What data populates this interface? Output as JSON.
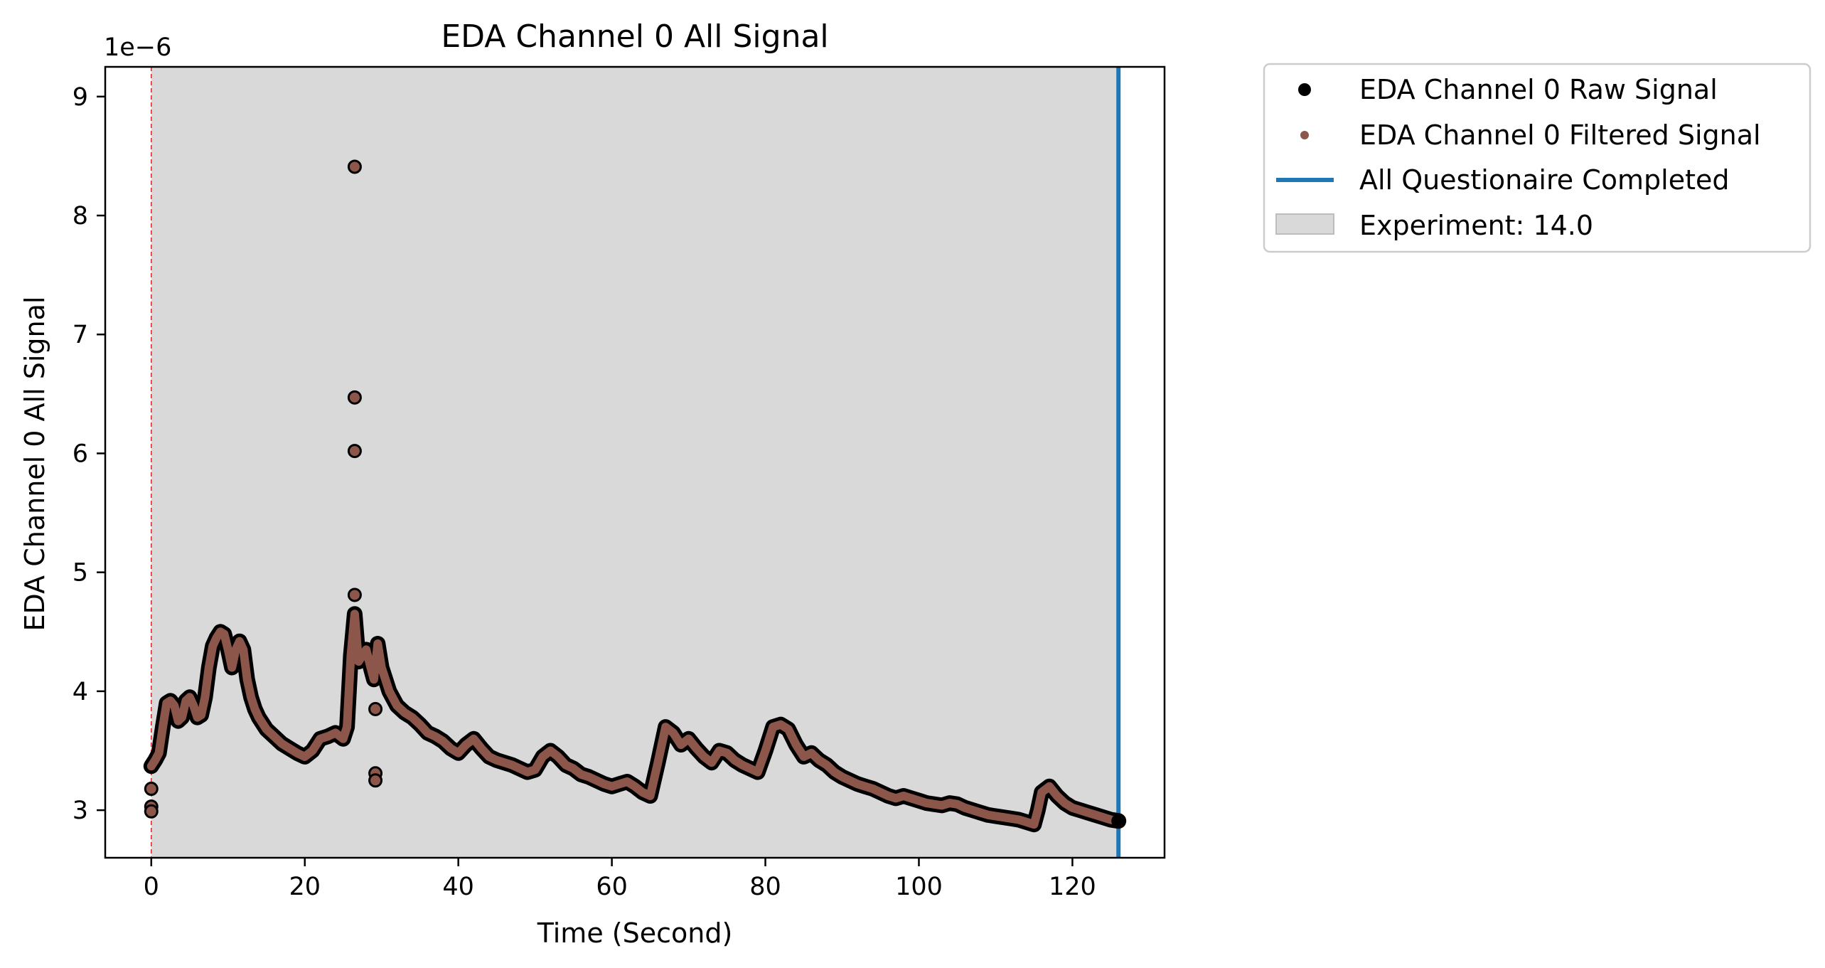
{
  "chart_data": {
    "type": "scatter",
    "title": "EDA Channel 0 All Signal",
    "xlabel": "Time (Second)",
    "ylabel": "EDA Channel 0 All Signal",
    "y_offset_label": "1e−6",
    "xlim": [
      -6,
      132
    ],
    "ylim": [
      2.6,
      9.25
    ],
    "x_ticks": [
      0,
      20,
      40,
      60,
      80,
      100,
      120
    ],
    "x_tick_labels": [
      "0",
      "20",
      "40",
      "60",
      "80",
      "100",
      "120"
    ],
    "y_ticks": [
      3,
      4,
      5,
      6,
      7,
      8,
      9
    ],
    "y_tick_labels": [
      "3",
      "4",
      "5",
      "6",
      "7",
      "8",
      "9"
    ],
    "grid": false,
    "legend_position": "outside-right",
    "series": [
      {
        "name": "EDA Channel 0 Raw Signal",
        "kind": "markers",
        "color": "#000000",
        "x": [
          0,
          0.5,
          1,
          1.5,
          2,
          2.5,
          3,
          3.5,
          4,
          4.5,
          5,
          5.5,
          6,
          6.5,
          7,
          7.5,
          8,
          8.5,
          9,
          9.5,
          10,
          10.5,
          11,
          11.5,
          12,
          12.5,
          13,
          13.5,
          14,
          15,
          16,
          17,
          18,
          19,
          20,
          21,
          22,
          23,
          24,
          25,
          25.5,
          26,
          26.5,
          27,
          27.5,
          28,
          28.5,
          29,
          29.5,
          30,
          31,
          32,
          33,
          34,
          35,
          36,
          37,
          38,
          39,
          40,
          41,
          42,
          43,
          44,
          45,
          46,
          47,
          48,
          49,
          50,
          51,
          52,
          53,
          54,
          55,
          56,
          57,
          58,
          59,
          60,
          61,
          62,
          63,
          64,
          65,
          66,
          67,
          68,
          69,
          70,
          71,
          72,
          73,
          74,
          75,
          76,
          77,
          78,
          79,
          80,
          81,
          82,
          83,
          84,
          85,
          86,
          87,
          88,
          89,
          90,
          91,
          92,
          93,
          94,
          95,
          96,
          97,
          98,
          99,
          100,
          101,
          102,
          103,
          104,
          105,
          106,
          107,
          108,
          109,
          110,
          111,
          112,
          113,
          114,
          115,
          115.5,
          116,
          117,
          118,
          119,
          120,
          121,
          122,
          123,
          124,
          125,
          126
        ],
        "y": [
          3.37,
          3.42,
          3.48,
          3.7,
          3.9,
          3.92,
          3.88,
          3.75,
          3.78,
          3.92,
          3.95,
          3.88,
          3.78,
          3.8,
          3.95,
          4.2,
          4.38,
          4.45,
          4.5,
          4.48,
          4.35,
          4.2,
          4.35,
          4.42,
          4.35,
          4.1,
          3.95,
          3.85,
          3.78,
          3.68,
          3.62,
          3.56,
          3.52,
          3.48,
          3.45,
          3.5,
          3.6,
          3.62,
          3.65,
          3.6,
          3.7,
          4.3,
          4.65,
          4.25,
          4.3,
          4.35,
          4.22,
          4.1,
          4.4,
          4.2,
          4.0,
          3.88,
          3.82,
          3.78,
          3.72,
          3.65,
          3.62,
          3.58,
          3.52,
          3.48,
          3.55,
          3.6,
          3.52,
          3.45,
          3.42,
          3.4,
          3.38,
          3.35,
          3.32,
          3.34,
          3.45,
          3.5,
          3.45,
          3.38,
          3.35,
          3.3,
          3.28,
          3.25,
          3.22,
          3.2,
          3.22,
          3.24,
          3.2,
          3.15,
          3.12,
          3.4,
          3.7,
          3.65,
          3.55,
          3.6,
          3.52,
          3.45,
          3.4,
          3.5,
          3.48,
          3.42,
          3.38,
          3.35,
          3.32,
          3.5,
          3.7,
          3.72,
          3.68,
          3.55,
          3.45,
          3.48,
          3.42,
          3.38,
          3.32,
          3.28,
          3.25,
          3.22,
          3.2,
          3.18,
          3.15,
          3.12,
          3.1,
          3.12,
          3.1,
          3.08,
          3.06,
          3.05,
          3.04,
          3.06,
          3.05,
          3.02,
          3.0,
          2.98,
          2.96,
          2.95,
          2.94,
          2.93,
          2.92,
          2.9,
          2.88,
          3.0,
          3.15,
          3.2,
          3.12,
          3.06,
          3.02,
          3.0,
          2.98,
          2.96,
          2.94,
          2.92,
          2.91
        ]
      },
      {
        "name": "EDA Channel 0 Filtered Signal",
        "kind": "markers",
        "color": "#8c564b",
        "x": [
          0,
          0.5,
          1,
          1.5,
          2,
          2.5,
          3,
          3.5,
          4,
          4.5,
          5,
          5.5,
          6,
          6.5,
          7,
          7.5,
          8,
          8.5,
          9,
          9.5,
          10,
          10.5,
          11,
          11.5,
          12,
          12.5,
          13,
          13.5,
          14,
          15,
          16,
          17,
          18,
          19,
          20,
          21,
          22,
          23,
          24,
          25,
          25.5,
          26,
          26.5,
          27,
          27.5,
          28,
          28.5,
          29,
          29.5,
          30,
          31,
          32,
          33,
          34,
          35,
          36,
          37,
          38,
          39,
          40,
          41,
          42,
          43,
          44,
          45,
          46,
          47,
          48,
          49,
          50,
          51,
          52,
          53,
          54,
          55,
          56,
          57,
          58,
          59,
          60,
          61,
          62,
          63,
          64,
          65,
          66,
          67,
          68,
          69,
          70,
          71,
          72,
          73,
          74,
          75,
          76,
          77,
          78,
          79,
          80,
          81,
          82,
          83,
          84,
          85,
          86,
          87,
          88,
          89,
          90,
          91,
          92,
          93,
          94,
          95,
          96,
          97,
          98,
          99,
          100,
          101,
          102,
          103,
          104,
          105,
          106,
          107,
          108,
          109,
          110,
          111,
          112,
          113,
          114,
          115,
          115.5,
          116,
          117,
          118,
          119,
          120,
          121,
          122,
          123,
          124,
          125,
          126
        ],
        "y": [
          3.37,
          3.42,
          3.48,
          3.7,
          3.9,
          3.92,
          3.88,
          3.75,
          3.78,
          3.92,
          3.95,
          3.88,
          3.78,
          3.8,
          3.95,
          4.2,
          4.38,
          4.45,
          4.5,
          4.48,
          4.35,
          4.2,
          4.35,
          4.42,
          4.35,
          4.1,
          3.95,
          3.85,
          3.78,
          3.68,
          3.62,
          3.56,
          3.52,
          3.48,
          3.45,
          3.5,
          3.6,
          3.62,
          3.65,
          3.6,
          3.7,
          4.3,
          4.65,
          4.25,
          4.3,
          4.35,
          4.22,
          4.1,
          4.4,
          4.2,
          4.0,
          3.88,
          3.82,
          3.78,
          3.72,
          3.65,
          3.62,
          3.58,
          3.52,
          3.48,
          3.55,
          3.6,
          3.52,
          3.45,
          3.42,
          3.4,
          3.38,
          3.35,
          3.32,
          3.34,
          3.45,
          3.5,
          3.45,
          3.38,
          3.35,
          3.3,
          3.28,
          3.25,
          3.22,
          3.2,
          3.22,
          3.24,
          3.2,
          3.15,
          3.12,
          3.4,
          3.7,
          3.65,
          3.55,
          3.6,
          3.52,
          3.45,
          3.4,
          3.5,
          3.48,
          3.42,
          3.38,
          3.35,
          3.32,
          3.5,
          3.7,
          3.72,
          3.68,
          3.55,
          3.45,
          3.48,
          3.42,
          3.38,
          3.32,
          3.28,
          3.25,
          3.22,
          3.2,
          3.18,
          3.15,
          3.12,
          3.1,
          3.12,
          3.1,
          3.08,
          3.06,
          3.05,
          3.04,
          3.06,
          3.05,
          3.02,
          3.0,
          2.98,
          2.96,
          2.95,
          2.94,
          2.93,
          2.92,
          2.9,
          2.88,
          3.0,
          3.15,
          3.2,
          3.12,
          3.06,
          3.02,
          3.0,
          2.98,
          2.96,
          2.94,
          2.92,
          2.91
        ]
      },
      {
        "name": "",
        "kind": "outliers",
        "color": "#8c564b",
        "x": [
          0,
          0,
          0,
          26.5,
          26.5,
          26.5,
          26.5,
          29.2,
          29.2,
          29.2
        ],
        "y": [
          3.18,
          3.03,
          2.99,
          8.41,
          6.47,
          6.02,
          4.81,
          3.85,
          3.31,
          3.25
        ]
      }
    ],
    "vlines": [
      {
        "name": "All Questionaire Completed",
        "x": 126,
        "color": "#1f77b4",
        "style": "solid"
      },
      {
        "name": "",
        "x": 0,
        "color": "#d62728",
        "style": "dashed"
      }
    ],
    "spans": [
      {
        "name": "Experiment: 14.0",
        "x_start": 0,
        "x_end": 126,
        "color": "#d9d9d9"
      }
    ]
  },
  "legend": {
    "items": [
      {
        "label": "EDA Channel 0 Raw Signal"
      },
      {
        "label": "EDA Channel 0 Filtered Signal"
      },
      {
        "label": "All Questionaire Completed"
      },
      {
        "label": "Experiment: 14.0"
      }
    ]
  }
}
